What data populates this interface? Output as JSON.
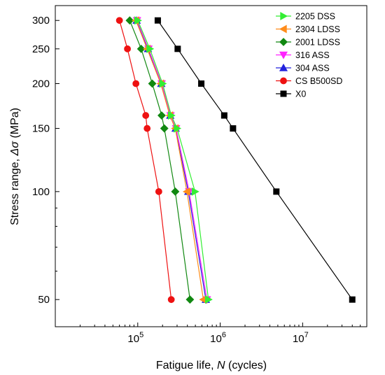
{
  "chart_data": {
    "type": "line",
    "xlabel_prefix": "Fatigue life, ",
    "xlabel_var": "N",
    "xlabel_suffix": " (cycles)",
    "ylabel_prefix": "Stress range, ",
    "ylabel_var": "Δσ",
    "ylabel_suffix": " (MPa)",
    "x_scale": "log",
    "y_scale": "log",
    "xlim": [
      10000,
      60000000
    ],
    "ylim": [
      42,
      330
    ],
    "x_ticks": [
      {
        "value": 100000,
        "base": "10",
        "exp": "5"
      },
      {
        "value": 1000000,
        "base": "10",
        "exp": "6"
      },
      {
        "value": 10000000,
        "base": "10",
        "exp": "7"
      }
    ],
    "y_ticks": [
      {
        "value": 50,
        "label": "50"
      },
      {
        "value": 100,
        "label": "100"
      },
      {
        "value": 150,
        "label": "150"
      },
      {
        "value": 200,
        "label": "200"
      },
      {
        "value": 250,
        "label": "250"
      },
      {
        "value": 300,
        "label": "300"
      }
    ],
    "grid": false,
    "legend_position": "top-right",
    "series": [
      {
        "name": "2205 DSS",
        "color": "#33ee33",
        "marker": "triangle-right",
        "x": [
          100000,
          140000,
          200000,
          255000,
          300000,
          495000,
          720000
        ],
        "y": [
          300,
          250,
          200,
          163,
          150,
          100,
          50
        ]
      },
      {
        "name": "2304 LDSS",
        "color": "#ff8c1a",
        "marker": "triangle-left",
        "x": [
          95000,
          130000,
          190000,
          245000,
          285000,
          395000,
          625000
        ],
        "y": [
          300,
          250,
          200,
          163,
          150,
          100,
          50
        ]
      },
      {
        "name": "2001 LDSS",
        "color": "#118811",
        "marker": "diamond",
        "x": [
          80000,
          110000,
          150000,
          195000,
          210000,
          285000,
          430000
        ],
        "y": [
          300,
          250,
          200,
          163,
          150,
          100,
          50
        ]
      },
      {
        "name": "316 ASS",
        "color": "#ff22ff",
        "marker": "triangle-down",
        "x": [
          98000,
          135000,
          195000,
          250000,
          292000,
          420000,
          690000
        ],
        "y": [
          300,
          250,
          200,
          163,
          150,
          100,
          50
        ]
      },
      {
        "name": "304 ASS",
        "color": "#2222dd",
        "marker": "triangle-up",
        "x": [
          97000,
          133000,
          193000,
          248000,
          288000,
          410000,
          670000
        ],
        "y": [
          300,
          250,
          200,
          163,
          150,
          100,
          50
        ]
      },
      {
        "name": " CS B500SD",
        "color": "#ee1111",
        "marker": "circle",
        "x": [
          60000,
          75000,
          95000,
          125000,
          130000,
          180000,
          255000
        ],
        "y": [
          300,
          250,
          200,
          163,
          150,
          100,
          50
        ]
      },
      {
        "name": "X0",
        "color": "#000000",
        "marker": "square",
        "x": [
          175000,
          305000,
          590000,
          1120000,
          1430000,
          4800000,
          40000000
        ],
        "y": [
          300,
          250,
          200,
          163,
          150,
          100,
          50
        ]
      }
    ]
  }
}
